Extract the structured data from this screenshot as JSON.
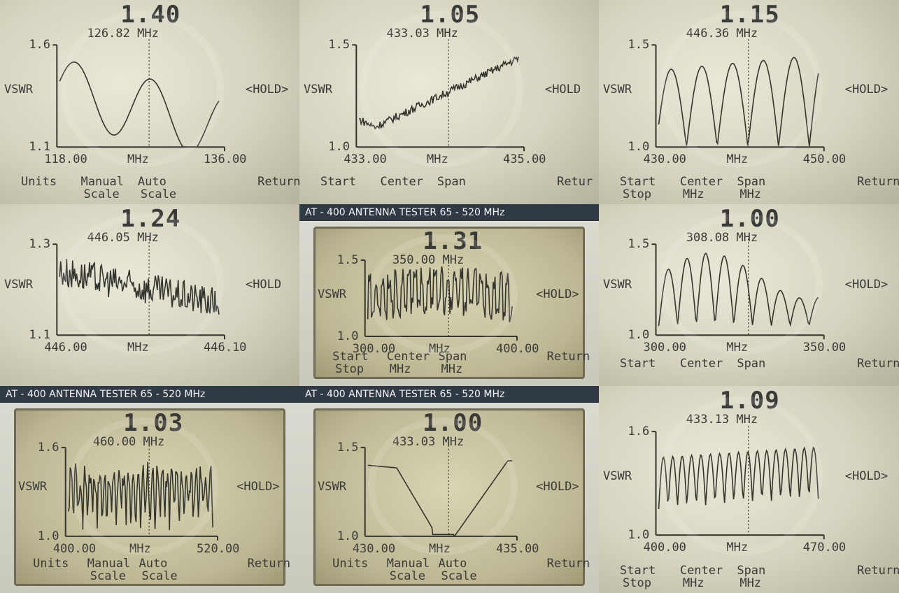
{
  "colors": {
    "lcd_light": "#e6e6d3",
    "lcd_dark": "#b9b8a3",
    "ink": "#35352f",
    "bezel": "#2f3a44"
  },
  "panels": [
    {
      "id": "p1",
      "vswr": "1.40",
      "freq": "126.82 MHz",
      "ytop": "1.6",
      "ybot": "1.1",
      "ylabel": "VSWR",
      "xstart": "118.00",
      "xunit": "MHz",
      "xend": "136.00",
      "hold": "<HOLD>",
      "menu": [
        "Units",
        "Manual",
        "Auto",
        "Return"
      ],
      "menu2": [
        "",
        "Scale",
        "Scale",
        ""
      ],
      "header": ""
    },
    {
      "id": "p2",
      "vswr": "1.05",
      "freq": "433.03 MHz",
      "ytop": "1.5",
      "ybot": "1.0",
      "ylabel": "VSWR",
      "xstart": "433.00",
      "xunit": "MHz",
      "xend": "435.00",
      "hold": "<HOLD",
      "menu": [
        "Start",
        "Center",
        "Span",
        "Retur"
      ],
      "menu2": [
        "",
        "",
        "",
        ""
      ],
      "header": ""
    },
    {
      "id": "p3",
      "vswr": "1.15",
      "freq": "446.36 MHz",
      "ytop": "1.5",
      "ybot": "1.0",
      "ylabel": "VSWR",
      "xstart": "430.00",
      "xunit": "MHz",
      "xend": "450.00",
      "hold": "<HOLD>",
      "menu": [
        "Start",
        "Center",
        "Span",
        "Return"
      ],
      "menu2": [
        "Stop",
        "MHz",
        "MHz",
        ""
      ],
      "header": ""
    },
    {
      "id": "p4",
      "vswr": "1.24",
      "freq": "446.05 MHz",
      "ytop": "1.3",
      "ybot": "1.1",
      "ylabel": "VSWR",
      "xstart": "446.00",
      "xunit": "MHz",
      "xend": "446.10",
      "hold": "<HOLD",
      "menu": [
        "",
        "",
        "",
        ""
      ],
      "menu2": [
        "",
        "",
        "",
        ""
      ],
      "header": ""
    },
    {
      "id": "p5",
      "vswr": "1.31",
      "freq": "350.00 MHz",
      "ytop": "1.5",
      "ybot": "1.0",
      "ylabel": "VSWR",
      "xstart": "300.00",
      "xunit": "MHz",
      "xend": "400.00",
      "hold": "<HOLD>",
      "menu": [
        "Start",
        "Center",
        "Span",
        "Return"
      ],
      "menu2": [
        "Stop",
        "MHz",
        "MHz",
        ""
      ],
      "header": "AT - 400 ANTENNA TESTER     65 - 520 MHz"
    },
    {
      "id": "p6",
      "vswr": "1.00",
      "freq": "308.08 MHz",
      "ytop": "1.5",
      "ybot": "1.0",
      "ylabel": "VSWR",
      "xstart": "300.00",
      "xunit": "MHz",
      "xend": "350.00",
      "hold": "<HOLD>",
      "menu": [
        "Start",
        "Center",
        "Span",
        "Return"
      ],
      "menu2": [
        "",
        "",
        "",
        ""
      ],
      "header": ""
    },
    {
      "id": "p7",
      "vswr": "1.03",
      "freq": "460.00 MHz",
      "ytop": "1.6",
      "ybot": "1.0",
      "ylabel": "VSWR",
      "xstart": "400.00",
      "xunit": "MHz",
      "xend": "520.00",
      "hold": "<HOLD>",
      "menu": [
        "Units",
        "Manual",
        "Auto",
        "Return"
      ],
      "menu2": [
        "",
        "Scale",
        "Scale",
        ""
      ],
      "header": "AT - 400 ANTENNA TESTER     65 - 520 MHz"
    },
    {
      "id": "p8",
      "vswr": "1.00",
      "freq": "433.03 MHz",
      "ytop": "1.5",
      "ybot": "1.0",
      "ylabel": "VSWR",
      "xstart": "430.00",
      "xunit": "MHz",
      "xend": "435.00",
      "hold": "<HOLD>",
      "menu": [
        "Units",
        "Manual",
        "Auto",
        "Return"
      ],
      "menu2": [
        "",
        "Scale",
        "Scale",
        ""
      ],
      "header": "AT - 400 ANTENNA TESTER     65 - 520 MHz"
    },
    {
      "id": "p9",
      "vswr": "1.09",
      "freq": "433.13 MHz",
      "ytop": "1.6",
      "ybot": "1.0",
      "ylabel": "VSWR",
      "xstart": "400.00",
      "xunit": "MHz",
      "xend": "470.00",
      "hold": "<HOLD>",
      "menu": [
        "Start",
        "Center",
        "Span",
        "Return"
      ],
      "menu2": [
        "Stop",
        "MHz",
        "MHz",
        ""
      ],
      "header": ""
    }
  ]
}
